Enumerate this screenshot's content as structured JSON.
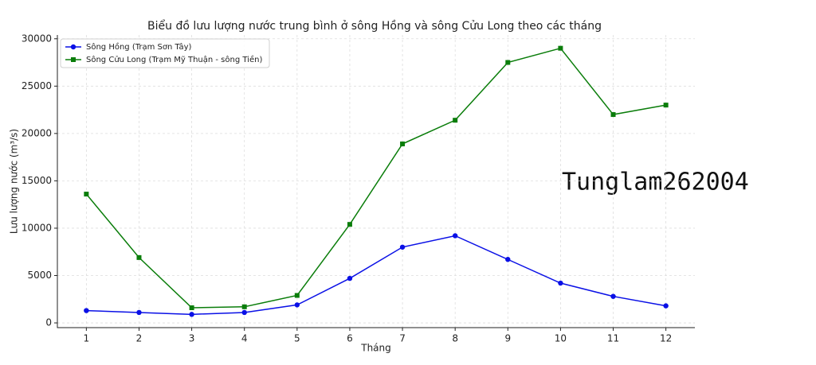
{
  "chart_data": {
    "type": "line",
    "title": "Biểu đồ lưu lượng nước trung bình ở sông Hồng và sông Cửu Long theo các tháng",
    "x_label": "Tháng",
    "y_label": "Lưu lượng nước (m³/s)",
    "annotation": "Tunglam262004",
    "x": [
      1,
      2,
      3,
      4,
      5,
      6,
      7,
      8,
      9,
      10,
      11,
      12
    ],
    "xlim": [
      0.45,
      12.55
    ],
    "xticks": [
      1,
      2,
      3,
      4,
      5,
      6,
      7,
      8,
      9,
      10,
      11,
      12
    ],
    "ylim": [
      -500,
      30400
    ],
    "yticks": [
      0,
      5000,
      10000,
      15000,
      20000,
      25000,
      30000
    ],
    "grid": true,
    "legend": "upper left",
    "series": [
      {
        "name": "Sông Hồng (Trạm Sơn Tây)",
        "color": "#0a10e6",
        "marker": "circle",
        "values": [
          1300,
          1100,
          900,
          1100,
          1900,
          4700,
          8000,
          9200,
          6700,
          4200,
          2800,
          1800
        ]
      },
      {
        "name": "Sông Cửu Long (Trạm Mỹ Thuận - sông Tiền)",
        "color": "#0a7d0a",
        "marker": "square",
        "values": [
          13600,
          6900,
          1600,
          1700,
          2900,
          10400,
          18900,
          21400,
          27500,
          29000,
          22000,
          23000
        ]
      }
    ]
  }
}
